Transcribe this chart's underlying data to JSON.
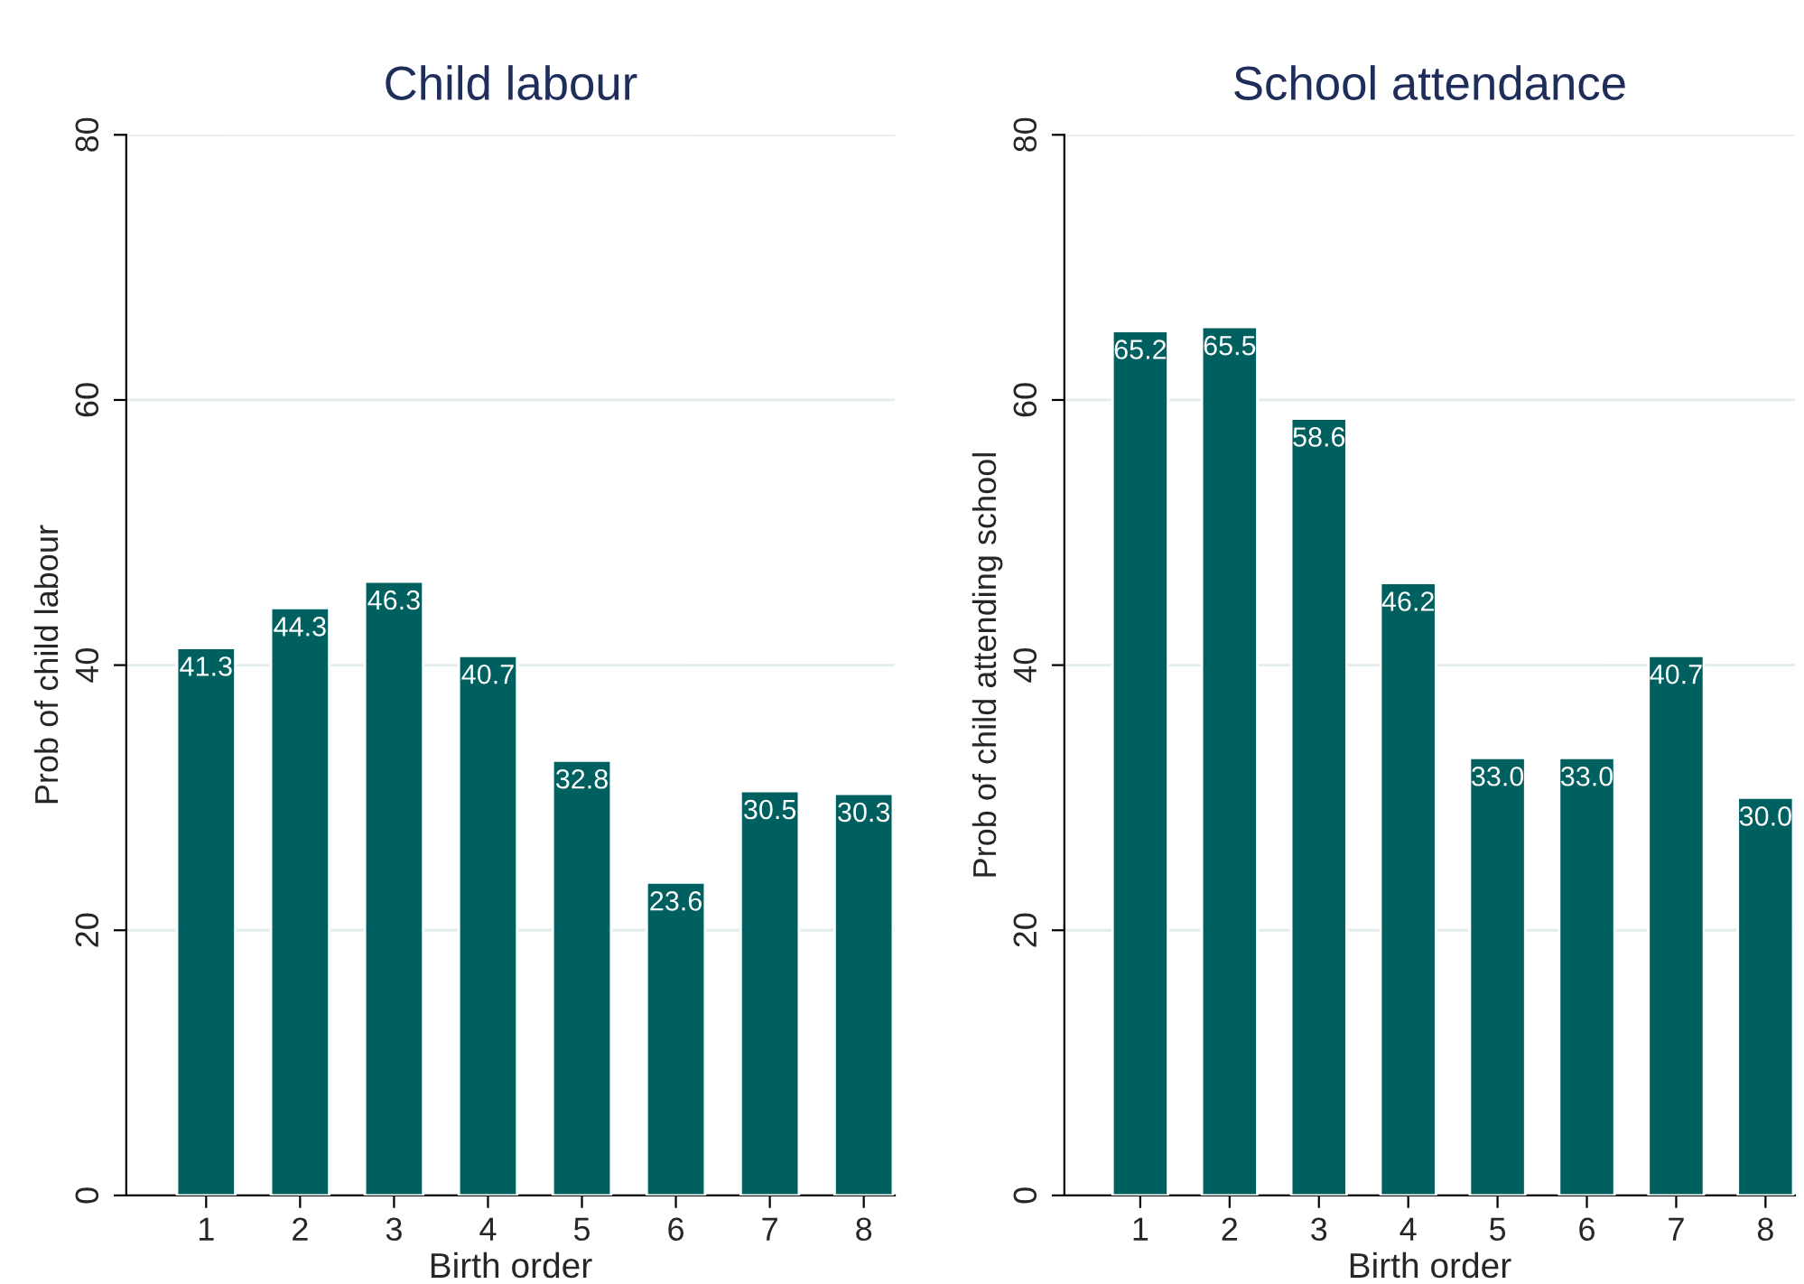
{
  "chart_data": [
    {
      "type": "bar",
      "title": "Child labour",
      "xlabel": "Birth order",
      "ylabel": "Prob of child labour",
      "categories": [
        "1",
        "2",
        "3",
        "4",
        "5",
        "6",
        "7",
        "8"
      ],
      "values": [
        41.3,
        44.3,
        46.3,
        40.7,
        32.8,
        23.6,
        30.5,
        30.3
      ],
      "value_labels": [
        "41.3",
        "44.3",
        "46.3",
        "40.7",
        "32.8",
        "23.6",
        "30.5",
        "30.3"
      ],
      "color": "#005f5f",
      "ylim": [
        0,
        80
      ],
      "yticks": [
        0,
        20,
        40,
        60,
        80
      ],
      "grid": "y"
    },
    {
      "type": "bar",
      "title": "School attendance",
      "xlabel": "Birth order",
      "ylabel": "Prob of child attending school",
      "categories": [
        "1",
        "2",
        "3",
        "4",
        "5",
        "6",
        "7",
        "8"
      ],
      "values": [
        65.2,
        65.5,
        58.6,
        46.2,
        33.0,
        33.0,
        40.7,
        30.0
      ],
      "value_labels": [
        "65.2",
        "65.5",
        "58.6",
        "46.2",
        "33.0",
        "33.0",
        "40.7",
        "30.0"
      ],
      "color": "#005f5f",
      "ylim": [
        0,
        80
      ],
      "yticks": [
        0,
        20,
        40,
        60,
        80
      ],
      "grid": "y"
    }
  ]
}
